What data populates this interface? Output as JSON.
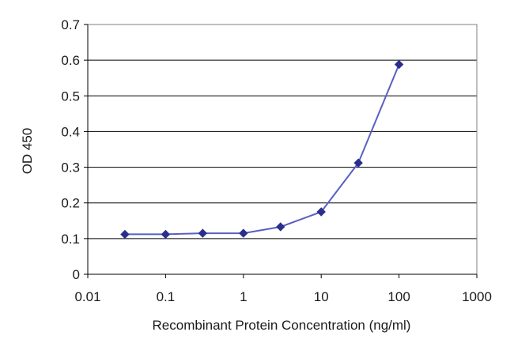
{
  "chart_data": {
    "type": "line",
    "title": "",
    "xlabel": "Recombinant Protein Concentration (ng/ml)",
    "ylabel": "OD 450",
    "x_scale": "log",
    "xlim": [
      0.01,
      1000
    ],
    "ylim": [
      0,
      0.7
    ],
    "x_ticks": [
      "0.01",
      "0.1",
      "1",
      "10",
      "100",
      "1000"
    ],
    "y_ticks": [
      "0",
      "0.1",
      "0.2",
      "0.3",
      "0.4",
      "0.5",
      "0.6",
      "0.7"
    ],
    "grid": "horizontal major gridlines",
    "legend": "none",
    "series": [
      {
        "x": [
          0.03,
          0.1,
          0.3,
          1,
          3,
          10,
          30,
          100
        ],
        "y": [
          0.112,
          0.112,
          0.115,
          0.115,
          0.133,
          0.175,
          0.312,
          0.588
        ],
        "color": "#2b2f8c",
        "marker": "diamond"
      }
    ],
    "colors": {
      "line": "#5a5fc0",
      "marker": "#2b2f8c",
      "grid": "#000000",
      "plot_background": "#ffffff"
    }
  }
}
